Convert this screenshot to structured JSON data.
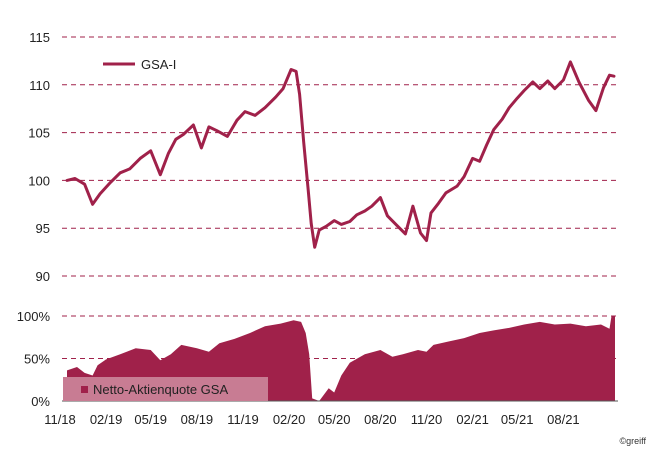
{
  "copyright": "©greiff",
  "chart_data": [
    {
      "type": "line",
      "series": [
        {
          "name": "GSA-I",
          "color": "#a0214a",
          "x": [
            "2018-11-15",
            "2018-12-01",
            "2018-12-20",
            "2019-01-05",
            "2019-01-20",
            "2019-02-10",
            "2019-03-01",
            "2019-03-20",
            "2019-04-10",
            "2019-05-01",
            "2019-05-20",
            "2019-06-05",
            "2019-06-20",
            "2019-07-05",
            "2019-07-25",
            "2019-08-10",
            "2019-08-25",
            "2019-09-10",
            "2019-10-01",
            "2019-10-20",
            "2019-11-05",
            "2019-11-25",
            "2019-12-15",
            "2020-01-05",
            "2020-01-20",
            "2020-02-05",
            "2020-02-15",
            "2020-02-22",
            "2020-03-01",
            "2020-03-10",
            "2020-03-16",
            "2020-03-23",
            "2020-04-01",
            "2020-04-15",
            "2020-05-01",
            "2020-05-15",
            "2020-06-01",
            "2020-06-15",
            "2020-07-01",
            "2020-07-15",
            "2020-08-01",
            "2020-08-15",
            "2020-09-01",
            "2020-09-20",
            "2020-10-05",
            "2020-10-20",
            "2020-11-01",
            "2020-11-10",
            "2020-11-25",
            "2020-12-10",
            "2021-01-01",
            "2021-01-15",
            "2021-02-01",
            "2021-02-15",
            "2021-03-01",
            "2021-03-15",
            "2021-04-01",
            "2021-04-15",
            "2021-05-01",
            "2021-05-15",
            "2021-06-01",
            "2021-06-15",
            "2021-07-01",
            "2021-07-15",
            "2021-08-01",
            "2021-08-15",
            "2021-09-01",
            "2021-09-20",
            "2021-10-05",
            "2021-10-20",
            "2021-11-01",
            "2021-11-10"
          ],
          "values": [
            100,
            100.2,
            99.6,
            97.5,
            98.6,
            99.8,
            100.8,
            101.2,
            102.3,
            103.1,
            100.6,
            102.8,
            104.3,
            104.8,
            105.8,
            103.4,
            105.6,
            105.2,
            104.6,
            106.3,
            107.2,
            106.8,
            107.6,
            108.7,
            109.6,
            111.6,
            111.4,
            109.0,
            104.0,
            99.0,
            95.5,
            93.0,
            94.8,
            95.2,
            95.8,
            95.4,
            95.7,
            96.4,
            96.8,
            97.3,
            98.2,
            96.3,
            95.4,
            94.4,
            97.3,
            94.5,
            93.7,
            96.6,
            97.6,
            98.7,
            99.4,
            100.4,
            102.3,
            102.0,
            103.7,
            105.3,
            106.4,
            107.6,
            108.6,
            109.4,
            110.3,
            109.6,
            110.4,
            109.6,
            110.5,
            112.4,
            110.3,
            108.4,
            107.3,
            109.7,
            111.0,
            110.9
          ]
        }
      ],
      "ylim": [
        90,
        115
      ],
      "yticks": [
        "90",
        "95",
        "100",
        "105",
        "110",
        "115"
      ],
      "grid": "horizontal dashed",
      "legend_placement": "top-left"
    },
    {
      "type": "area",
      "series": [
        {
          "name": "Netto-Aktienquote GSA",
          "color": "#a0214a",
          "x": [
            "2018-11-15",
            "2018-12-05",
            "2018-12-20",
            "2019-01-05",
            "2019-01-15",
            "2019-02-01",
            "2019-03-01",
            "2019-04-01",
            "2019-05-01",
            "2019-05-20",
            "2019-06-10",
            "2019-07-01",
            "2019-08-01",
            "2019-08-25",
            "2019-09-15",
            "2019-10-15",
            "2019-11-15",
            "2019-12-15",
            "2020-01-15",
            "2020-02-10",
            "2020-02-25",
            "2020-03-05",
            "2020-03-12",
            "2020-03-18",
            "2020-04-01",
            "2020-04-20",
            "2020-05-01",
            "2020-05-15",
            "2020-06-01",
            "2020-07-01",
            "2020-08-01",
            "2020-08-25",
            "2020-09-15",
            "2020-10-15",
            "2020-11-01",
            "2020-11-15",
            "2020-12-15",
            "2021-01-15",
            "2021-02-15",
            "2021-03-15",
            "2021-04-15",
            "2021-05-15",
            "2021-06-15",
            "2021-07-15",
            "2021-08-15",
            "2021-09-15",
            "2021-10-15",
            "2021-11-01",
            "2021-11-05",
            "2021-11-12"
          ],
          "values": [
            0.36,
            0.4,
            0.33,
            0.3,
            0.42,
            0.49,
            0.55,
            0.62,
            0.6,
            0.48,
            0.55,
            0.66,
            0.62,
            0.58,
            0.68,
            0.73,
            0.8,
            0.88,
            0.91,
            0.95,
            0.93,
            0.8,
            0.55,
            0.03,
            0.0,
            0.15,
            0.1,
            0.3,
            0.45,
            0.55,
            0.6,
            0.52,
            0.55,
            0.6,
            0.58,
            0.66,
            0.7,
            0.74,
            0.8,
            0.83,
            0.86,
            0.9,
            0.93,
            0.9,
            0.91,
            0.88,
            0.9,
            0.85,
            1.0,
            1.0
          ]
        }
      ],
      "ylim": [
        0,
        1
      ],
      "yticks": [
        "0%",
        "50%",
        "100%"
      ],
      "xticks": [
        "11/18",
        "02/19",
        "05/19",
        "08/19",
        "11/19",
        "02/20",
        "05/20",
        "08/20",
        "11/20",
        "02/21",
        "05/21",
        "08/21"
      ],
      "grid": "horizontal dashed",
      "legend_placement": "bottom-left"
    }
  ]
}
